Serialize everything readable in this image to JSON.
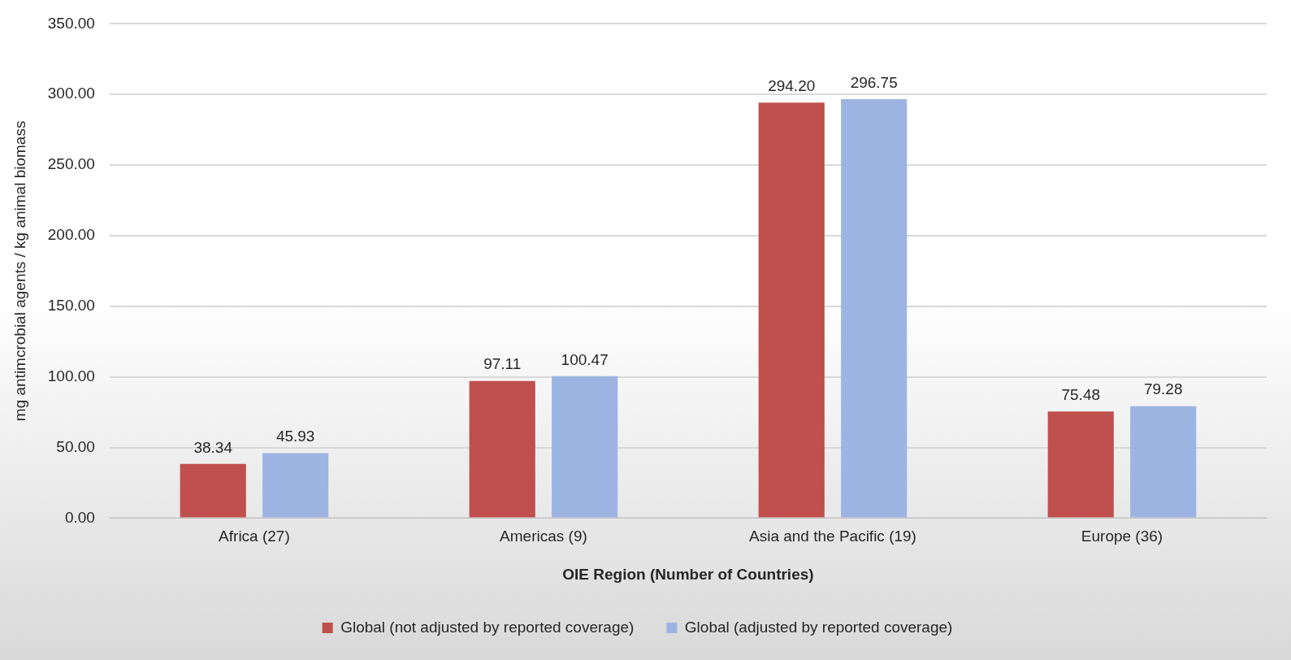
{
  "chart_data": {
    "type": "bar",
    "categories": [
      "Africa (27)",
      "Americas (9)",
      "Asia and the Pacific (19)",
      "Europe (36)"
    ],
    "xlabel": "OIE Region (Number of Countries)",
    "ylabel": "mg antimcrobial agents / kg animal biomass",
    "series": [
      {
        "name": "Global (not adjusted by reported coverage)",
        "color": "#c0504d",
        "values": [
          38.34,
          97.11,
          294.2,
          75.48
        ],
        "value_labels": [
          "38.34",
          "97.11",
          "294.20",
          "75.48"
        ]
      },
      {
        "name": "Global (adjusted by reported coverage)",
        "color": "#9db4e3",
        "values": [
          45.93,
          100.47,
          296.75,
          79.28
        ],
        "value_labels": [
          "45.93",
          "100.47",
          "296.75",
          "79.28"
        ]
      }
    ],
    "ylim": [
      0,
      350
    ],
    "yticks": [
      {
        "value": 0,
        "label": "0.00"
      },
      {
        "value": 50,
        "label": "50.00"
      },
      {
        "value": 100,
        "label": "100.00"
      },
      {
        "value": 150,
        "label": "150.00"
      },
      {
        "value": 200,
        "label": "200.00"
      },
      {
        "value": 250,
        "label": "250.00"
      },
      {
        "value": 300,
        "label": "300.00"
      },
      {
        "value": 350,
        "label": "350.00"
      }
    ],
    "grid": "y",
    "legend": "bottom"
  }
}
